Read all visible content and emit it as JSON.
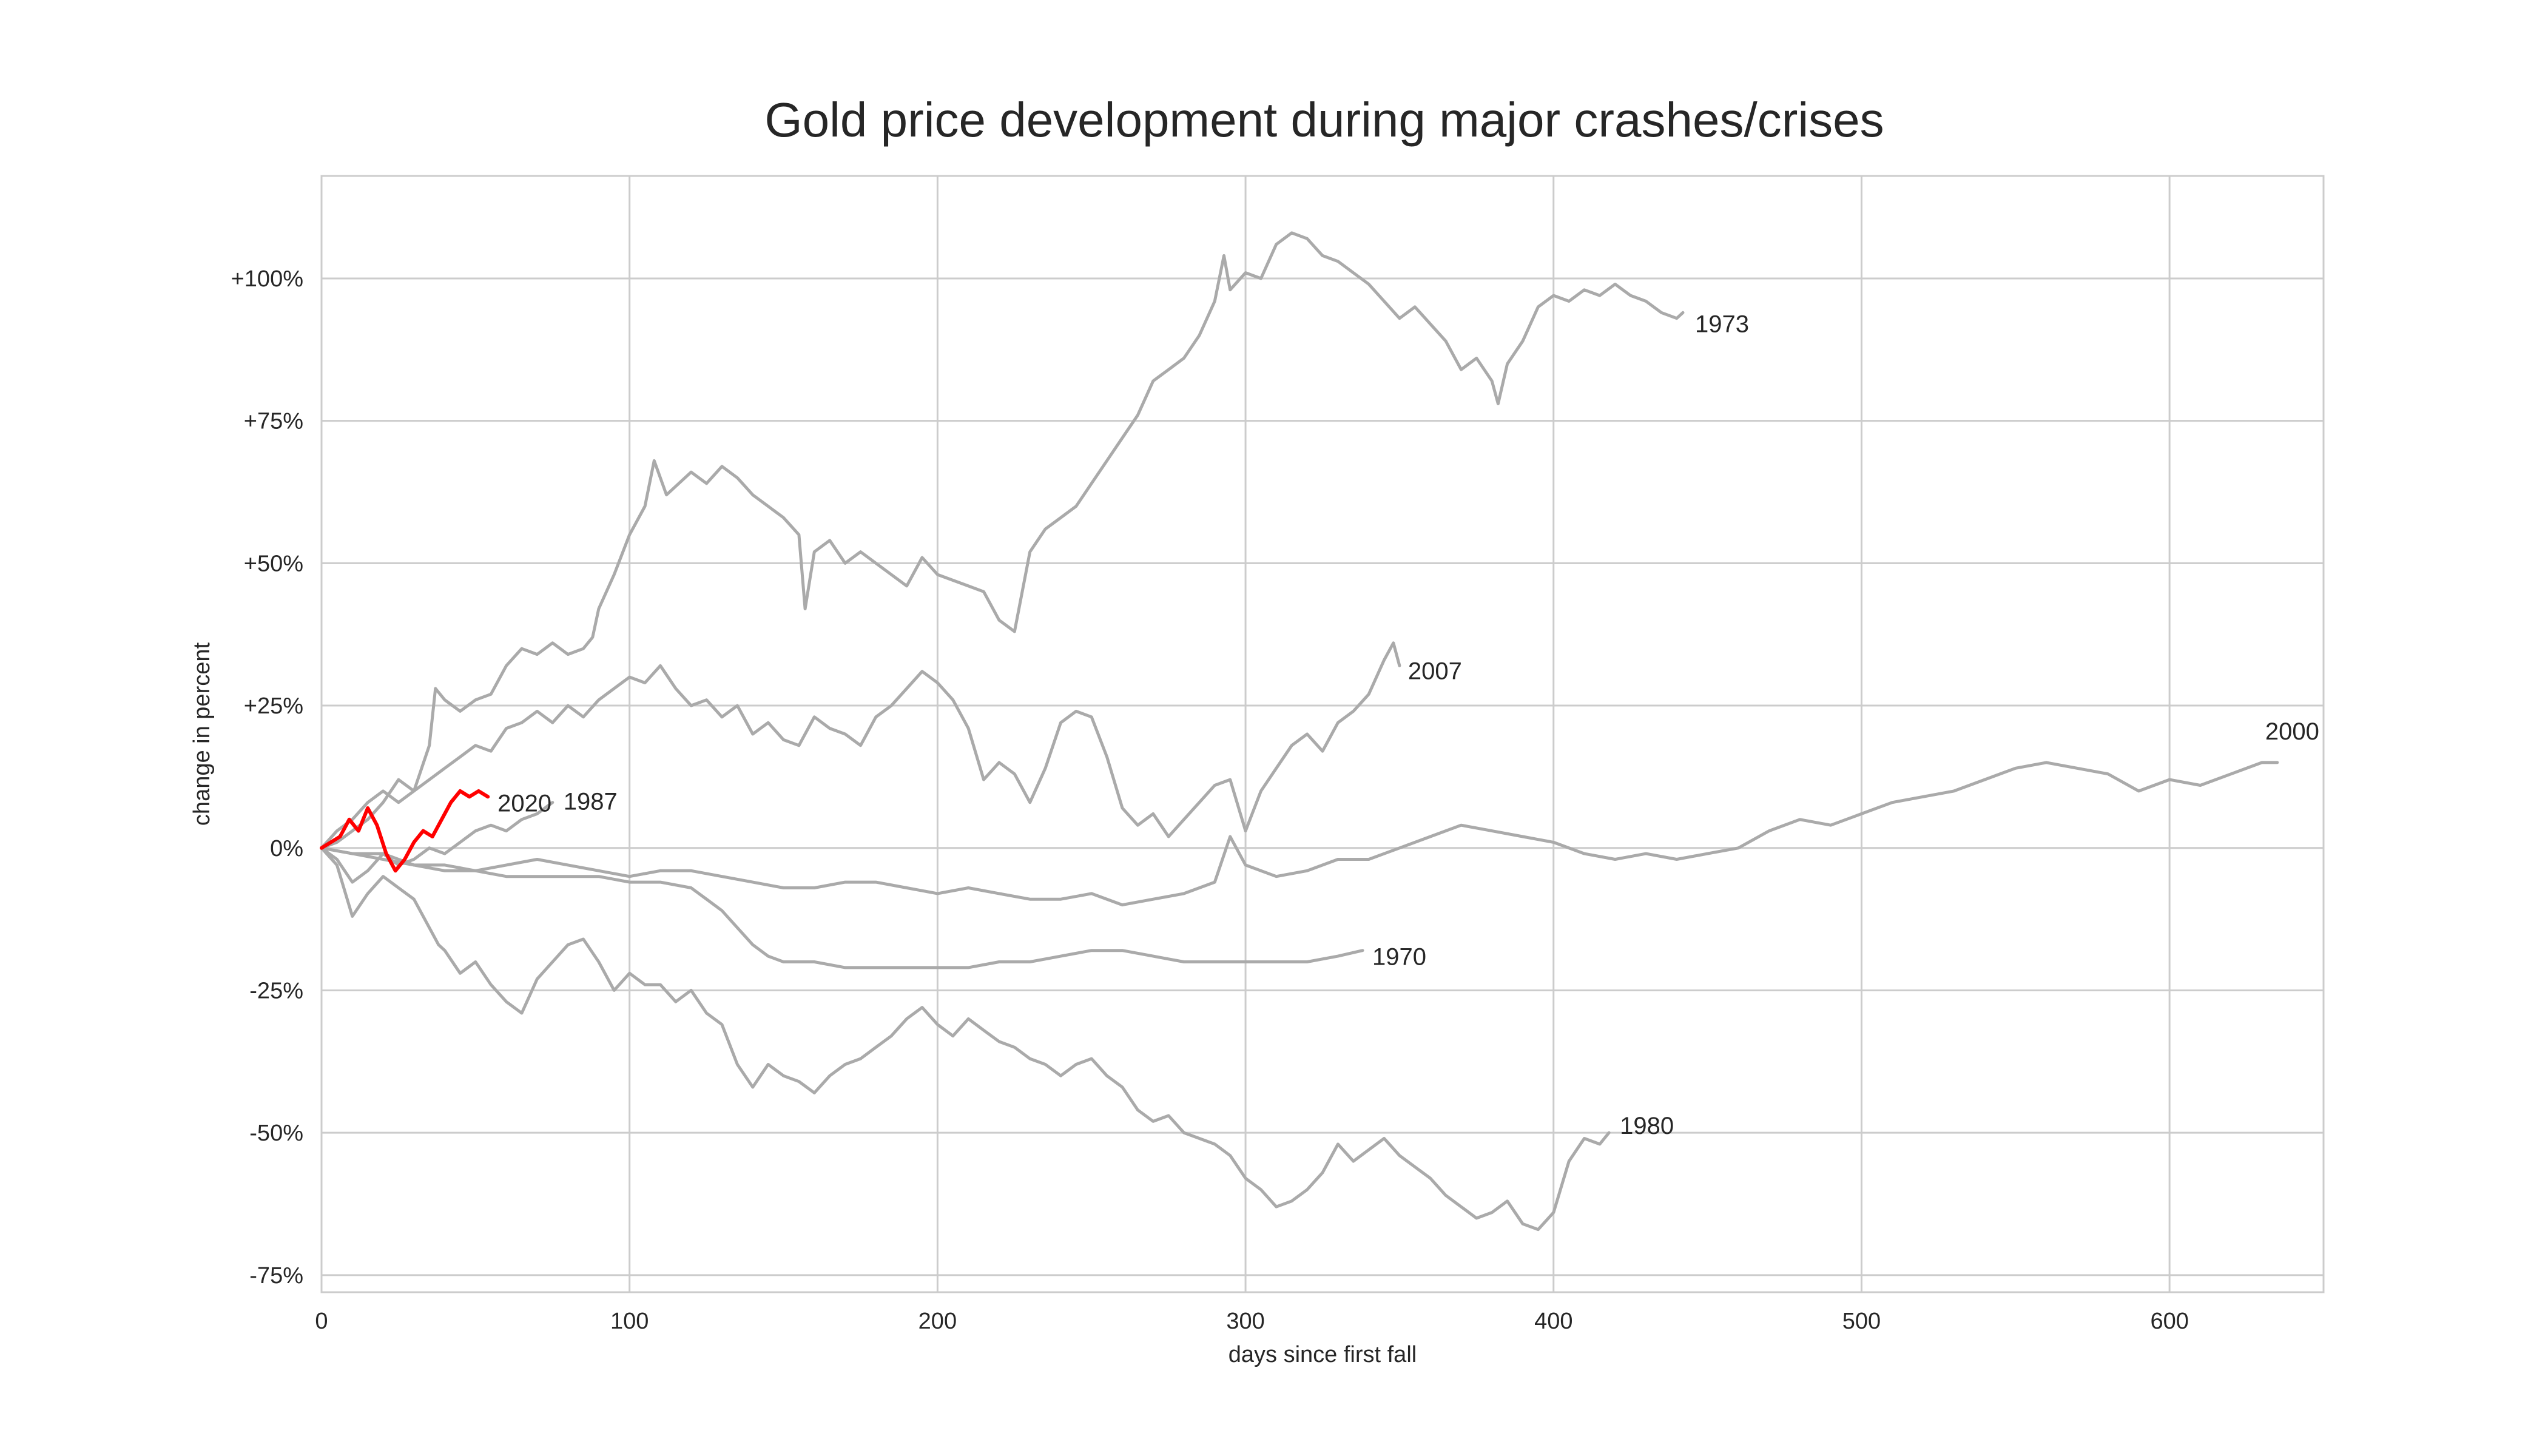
{
  "chart_data": {
    "type": "line",
    "title": "Gold price development during major crashes/crises",
    "xlabel": "days since first fall",
    "ylabel": "change in percent",
    "xlim": [
      0,
      650
    ],
    "ylim": [
      -78,
      118
    ],
    "xticks": [
      0,
      100,
      200,
      300,
      400,
      500,
      600
    ],
    "xtick_labels": [
      "0",
      "100",
      "200",
      "300",
      "400",
      "500",
      "600"
    ],
    "yticks": [
      100,
      75,
      50,
      25,
      0,
      -25,
      -50,
      -75
    ],
    "ytick_labels": [
      "+100%",
      "+75%",
      "+50%",
      "+25%",
      "0%",
      "-25%",
      "-50%",
      "-75%"
    ],
    "grid": true,
    "legend": "none",
    "colors": {
      "history": "#aaaaaa",
      "current": "#ff0000",
      "grid": "#cccccc",
      "frame": "#cccccc",
      "text": "#262626"
    },
    "series": [
      {
        "name": "1973",
        "x": [
          0,
          5,
          10,
          15,
          20,
          25,
          30,
          35,
          37,
          40,
          45,
          50,
          55,
          60,
          65,
          70,
          75,
          80,
          85,
          88,
          90,
          95,
          100,
          105,
          108,
          112,
          120,
          125,
          130,
          135,
          140,
          145,
          150,
          155,
          157,
          160,
          165,
          170,
          175,
          180,
          185,
          190,
          195,
          200,
          205,
          210,
          215,
          220,
          225,
          230,
          235,
          240,
          245,
          250,
          255,
          260,
          265,
          270,
          275,
          280,
          285,
          290,
          293,
          295,
          300,
          305,
          310,
          315,
          320,
          325,
          330,
          335,
          340,
          345,
          350,
          355,
          360,
          365,
          370,
          375,
          380,
          382,
          385,
          390,
          395,
          400,
          405,
          410,
          415,
          420,
          425,
          430,
          435,
          440,
          442
        ],
        "y": [
          0,
          1,
          3,
          5,
          8,
          12,
          10,
          18,
          28,
          26,
          24,
          26,
          27,
          32,
          35,
          34,
          36,
          34,
          35,
          37,
          42,
          48,
          55,
          60,
          68,
          62,
          66,
          64,
          67,
          65,
          62,
          60,
          58,
          55,
          42,
          52,
          54,
          50,
          52,
          50,
          48,
          46,
          51,
          48,
          47,
          46,
          45,
          40,
          38,
          52,
          56,
          58,
          60,
          64,
          68,
          72,
          76,
          82,
          84,
          86,
          90,
          96,
          104,
          98,
          101,
          100,
          106,
          108,
          107,
          104,
          103,
          101,
          99,
          96,
          93,
          95,
          92,
          89,
          84,
          86,
          82,
          78,
          85,
          89,
          95,
          97,
          96,
          98,
          97,
          99,
          97,
          96,
          94,
          93,
          94
        ]
      },
      {
        "name": "2007",
        "x": [
          0,
          5,
          10,
          15,
          20,
          25,
          30,
          35,
          40,
          45,
          50,
          55,
          60,
          65,
          70,
          75,
          80,
          85,
          90,
          95,
          100,
          105,
          110,
          115,
          120,
          125,
          130,
          135,
          140,
          145,
          150,
          155,
          160,
          165,
          170,
          175,
          180,
          185,
          190,
          195,
          200,
          205,
          210,
          215,
          220,
          225,
          230,
          235,
          240,
          245,
          250,
          255,
          260,
          265,
          270,
          275,
          280,
          285,
          290,
          295,
          300,
          305,
          310,
          315,
          320,
          325,
          330,
          335,
          340,
          345,
          348,
          350
        ],
        "y": [
          0,
          3,
          5,
          8,
          10,
          8,
          10,
          12,
          14,
          16,
          18,
          17,
          21,
          22,
          24,
          22,
          25,
          23,
          26,
          28,
          30,
          29,
          32,
          28,
          25,
          26,
          23,
          25,
          20,
          22,
          19,
          18,
          23,
          21,
          20,
          18,
          23,
          25,
          28,
          31,
          29,
          26,
          21,
          12,
          15,
          13,
          8,
          14,
          22,
          24,
          23,
          16,
          7,
          4,
          6,
          2,
          5,
          8,
          11,
          12,
          3,
          10,
          14,
          18,
          20,
          17,
          22,
          24,
          27,
          33,
          36,
          32
        ]
      },
      {
        "name": "2000",
        "x": [
          0,
          10,
          20,
          30,
          40,
          50,
          60,
          70,
          80,
          90,
          100,
          110,
          120,
          130,
          140,
          150,
          160,
          170,
          180,
          190,
          200,
          210,
          220,
          230,
          240,
          250,
          260,
          270,
          280,
          290,
          295,
          300,
          310,
          320,
          330,
          340,
          350,
          360,
          370,
          380,
          390,
          400,
          410,
          420,
          430,
          440,
          450,
          460,
          470,
          480,
          490,
          500,
          510,
          520,
          530,
          540,
          550,
          560,
          570,
          580,
          590,
          600,
          610,
          620,
          630,
          635
        ],
        "y": [
          0,
          -1,
          -1,
          -3,
          -4,
          -4,
          -3,
          -2,
          -3,
          -4,
          -5,
          -4,
          -4,
          -5,
          -6,
          -7,
          -7,
          -6,
          -6,
          -7,
          -8,
          -7,
          -8,
          -9,
          -9,
          -8,
          -10,
          -9,
          -8,
          -6,
          2,
          -3,
          -5,
          -4,
          -2,
          -2,
          0,
          2,
          4,
          3,
          2,
          1,
          -1,
          -2,
          -1,
          -2,
          -1,
          0,
          3,
          5,
          4,
          6,
          8,
          9,
          10,
          12,
          14,
          15,
          14,
          13,
          10,
          12,
          11,
          13,
          15,
          15
        ]
      },
      {
        "name": "1987",
        "x": [
          0,
          5,
          10,
          15,
          20,
          25,
          30,
          35,
          40,
          45,
          50,
          55,
          60,
          65,
          70,
          75
        ],
        "y": [
          0,
          -2,
          -6,
          -4,
          -1,
          -3,
          -2,
          0,
          -1,
          1,
          3,
          4,
          3,
          5,
          6,
          8
        ]
      },
      {
        "name": "1970",
        "x": [
          0,
          10,
          20,
          30,
          40,
          50,
          60,
          70,
          80,
          90,
          100,
          110,
          120,
          125,
          130,
          135,
          140,
          145,
          150,
          160,
          170,
          180,
          190,
          200,
          210,
          220,
          230,
          240,
          250,
          260,
          270,
          280,
          290,
          300,
          310,
          320,
          330,
          338
        ],
        "y": [
          0,
          -1,
          -2,
          -3,
          -3,
          -4,
          -5,
          -5,
          -5,
          -5,
          -6,
          -6,
          -7,
          -9,
          -11,
          -14,
          -17,
          -19,
          -20,
          -20,
          -21,
          -21,
          -21,
          -21,
          -21,
          -20,
          -20,
          -19,
          -18,
          -18,
          -19,
          -20,
          -20,
          -20,
          -20,
          -20,
          -19,
          -18
        ]
      },
      {
        "name": "1980",
        "x": [
          0,
          5,
          10,
          15,
          20,
          25,
          30,
          35,
          38,
          40,
          45,
          50,
          55,
          60,
          65,
          70,
          75,
          80,
          85,
          90,
          95,
          100,
          105,
          110,
          115,
          120,
          125,
          130,
          135,
          140,
          145,
          150,
          155,
          160,
          165,
          170,
          175,
          180,
          185,
          190,
          195,
          200,
          205,
          210,
          215,
          220,
          225,
          230,
          235,
          240,
          245,
          250,
          255,
          260,
          265,
          270,
          275,
          280,
          285,
          290,
          295,
          300,
          305,
          310,
          315,
          320,
          325,
          330,
          335,
          340,
          345,
          350,
          355,
          360,
          365,
          370,
          375,
          380,
          385,
          390,
          395,
          400,
          405,
          410,
          415,
          418
        ],
        "y": [
          0,
          -3,
          -12,
          -8,
          -5,
          -7,
          -9,
          -14,
          -17,
          -18,
          -22,
          -20,
          -24,
          -27,
          -29,
          -23,
          -20,
          -17,
          -16,
          -20,
          -25,
          -22,
          -24,
          -24,
          -27,
          -25,
          -29,
          -31,
          -38,
          -42,
          -38,
          -40,
          -41,
          -43,
          -40,
          -38,
          -37,
          -35,
          -33,
          -30,
          -28,
          -31,
          -33,
          -30,
          -32,
          -34,
          -35,
          -37,
          -38,
          -40,
          -38,
          -37,
          -40,
          -42,
          -46,
          -48,
          -47,
          -50,
          -51,
          -52,
          -54,
          -58,
          -60,
          -63,
          -62,
          -60,
          -57,
          -52,
          -55,
          -53,
          -51,
          -54,
          -56,
          -58,
          -61,
          -63,
          -65,
          -64,
          -62,
          -66,
          -67,
          -64,
          -55,
          -51,
          -52,
          -50
        ]
      },
      {
        "name": "2020",
        "x": [
          0,
          3,
          6,
          9,
          12,
          15,
          18,
          21,
          24,
          27,
          30,
          33,
          36,
          39,
          42,
          45,
          48,
          51,
          54
        ],
        "y": [
          0,
          1,
          2,
          5,
          3,
          7,
          4,
          -1,
          -4,
          -2,
          1,
          3,
          2,
          5,
          8,
          10,
          9,
          10,
          9
        ]
      }
    ],
    "annotations": [
      "1973",
      "2007",
      "2000",
      "2020",
      "1987",
      "1970",
      "1980"
    ]
  }
}
